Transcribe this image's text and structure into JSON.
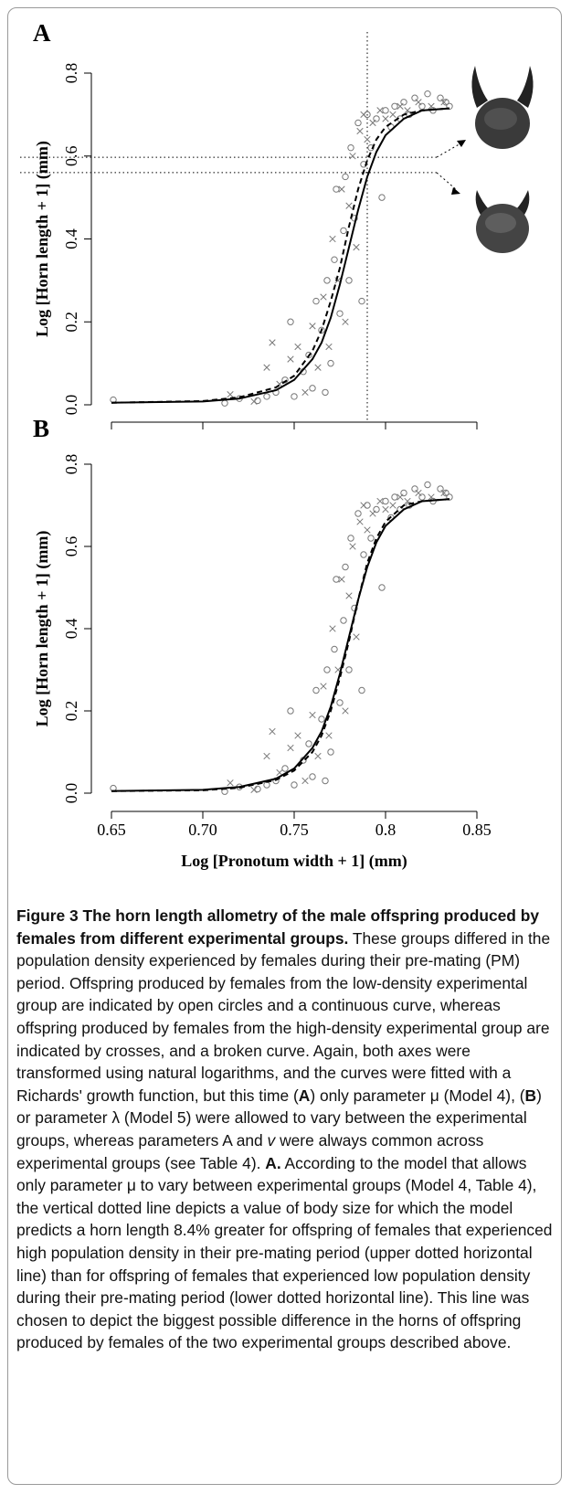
{
  "chart_data": [
    {
      "type": "scatter",
      "panel_label": "A",
      "ylabel": "Log [Horn length + 1] (mm)",
      "xlim": [
        0.65,
        0.85
      ],
      "ylim": [
        0,
        0.8
      ],
      "xticks": [
        0.65,
        0.7,
        0.75,
        0.8,
        0.85
      ],
      "xtick_labels": false,
      "yticks": [
        {
          "value": 0,
          "label": "0.0"
        },
        0.2,
        0.4,
        0.6,
        0.8
      ],
      "vlines": [
        0.79
      ],
      "hlines": [
        0.597,
        0.56
      ],
      "series": [
        {
          "marker": "circle",
          "color": "#777777",
          "x": [
            0.651,
            0.712,
            0.72,
            0.73,
            0.735,
            0.74,
            0.745,
            0.748,
            0.75,
            0.755,
            0.758,
            0.76,
            0.762,
            0.765,
            0.767,
            0.768,
            0.77,
            0.772,
            0.773,
            0.775,
            0.777,
            0.778,
            0.78,
            0.781,
            0.783,
            0.785,
            0.787,
            0.788,
            0.79,
            0.792,
            0.795,
            0.798,
            0.8,
            0.803,
            0.805,
            0.808,
            0.81,
            0.813,
            0.816,
            0.82,
            0.823,
            0.826,
            0.83,
            0.833,
            0.835
          ],
          "values": [
            0.012,
            0.004,
            0.015,
            0.01,
            0.02,
            0.03,
            0.06,
            0.2,
            0.02,
            0.08,
            0.12,
            0.04,
            0.25,
            0.18,
            0.03,
            0.3,
            0.1,
            0.35,
            0.52,
            0.22,
            0.42,
            0.55,
            0.3,
            0.62,
            0.45,
            0.68,
            0.25,
            0.58,
            0.7,
            0.62,
            0.69,
            0.5,
            0.71,
            0.67,
            0.72,
            0.69,
            0.73,
            0.7,
            0.74,
            0.72,
            0.75,
            0.71,
            0.74,
            0.73,
            0.72
          ]
        },
        {
          "marker": "cross",
          "color": "#777777",
          "x": [
            0.715,
            0.728,
            0.735,
            0.738,
            0.742,
            0.748,
            0.752,
            0.756,
            0.76,
            0.763,
            0.766,
            0.769,
            0.771,
            0.774,
            0.776,
            0.778,
            0.78,
            0.782,
            0.784,
            0.786,
            0.788,
            0.79,
            0.793,
            0.797,
            0.8,
            0.804,
            0.808,
            0.812,
            0.818,
            0.825,
            0.832
          ],
          "values": [
            0.025,
            0.008,
            0.09,
            0.15,
            0.05,
            0.11,
            0.14,
            0.03,
            0.19,
            0.09,
            0.26,
            0.14,
            0.4,
            0.3,
            0.52,
            0.2,
            0.48,
            0.6,
            0.38,
            0.66,
            0.7,
            0.64,
            0.68,
            0.71,
            0.69,
            0.7,
            0.72,
            0.71,
            0.73,
            0.72,
            0.73
          ]
        }
      ],
      "curves": [
        {
          "style": "solid",
          "color": "#000000",
          "x": [
            0.65,
            0.7,
            0.72,
            0.74,
            0.75,
            0.76,
            0.765,
            0.77,
            0.775,
            0.78,
            0.785,
            0.79,
            0.795,
            0.8,
            0.81,
            0.82,
            0.835
          ],
          "values": [
            0.005,
            0.008,
            0.015,
            0.035,
            0.06,
            0.11,
            0.15,
            0.21,
            0.29,
            0.38,
            0.47,
            0.55,
            0.61,
            0.65,
            0.69,
            0.71,
            0.715
          ]
        },
        {
          "style": "dashed",
          "color": "#000000",
          "x": [
            0.65,
            0.7,
            0.72,
            0.74,
            0.75,
            0.76,
            0.765,
            0.77,
            0.775,
            0.78,
            0.785,
            0.79,
            0.795,
            0.8,
            0.81,
            0.82,
            0.835
          ],
          "values": [
            0.005,
            0.009,
            0.018,
            0.042,
            0.07,
            0.13,
            0.18,
            0.25,
            0.33,
            0.43,
            0.52,
            0.59,
            0.64,
            0.67,
            0.7,
            0.71,
            0.715
          ]
        }
      ]
    },
    {
      "type": "scatter",
      "panel_label": "B",
      "ylabel": "Log [Horn length + 1] (mm)",
      "xlabel": "Log [Pronotum width + 1] (mm)",
      "xlim": [
        0.65,
        0.85
      ],
      "ylim": [
        0,
        0.8
      ],
      "xticks": [
        0.65,
        {
          "value": 0.7,
          "label": "0.70"
        },
        0.75,
        0.8,
        0.85
      ],
      "yticks": [
        {
          "value": 0,
          "label": "0.0"
        },
        0.2,
        0.4,
        0.6,
        0.8
      ],
      "series": [
        {
          "marker": "circle",
          "color": "#777777",
          "x": [
            0.651,
            0.712,
            0.72,
            0.73,
            0.735,
            0.74,
            0.745,
            0.748,
            0.75,
            0.755,
            0.758,
            0.76,
            0.762,
            0.765,
            0.767,
            0.768,
            0.77,
            0.772,
            0.773,
            0.775,
            0.777,
            0.778,
            0.78,
            0.781,
            0.783,
            0.785,
            0.787,
            0.788,
            0.79,
            0.792,
            0.795,
            0.798,
            0.8,
            0.803,
            0.805,
            0.808,
            0.81,
            0.813,
            0.816,
            0.82,
            0.823,
            0.826,
            0.83,
            0.833,
            0.835
          ],
          "values": [
            0.012,
            0.004,
            0.015,
            0.01,
            0.02,
            0.03,
            0.06,
            0.2,
            0.02,
            0.08,
            0.12,
            0.04,
            0.25,
            0.18,
            0.03,
            0.3,
            0.1,
            0.35,
            0.52,
            0.22,
            0.42,
            0.55,
            0.3,
            0.62,
            0.45,
            0.68,
            0.25,
            0.58,
            0.7,
            0.62,
            0.69,
            0.5,
            0.71,
            0.67,
            0.72,
            0.69,
            0.73,
            0.7,
            0.74,
            0.72,
            0.75,
            0.71,
            0.74,
            0.73,
            0.72
          ]
        },
        {
          "marker": "cross",
          "color": "#777777",
          "x": [
            0.715,
            0.728,
            0.735,
            0.738,
            0.742,
            0.748,
            0.752,
            0.756,
            0.76,
            0.763,
            0.766,
            0.769,
            0.771,
            0.774,
            0.776,
            0.778,
            0.78,
            0.782,
            0.784,
            0.786,
            0.788,
            0.79,
            0.793,
            0.797,
            0.8,
            0.804,
            0.808,
            0.812,
            0.818,
            0.825,
            0.832
          ],
          "values": [
            0.025,
            0.008,
            0.09,
            0.15,
            0.05,
            0.11,
            0.14,
            0.03,
            0.19,
            0.09,
            0.26,
            0.14,
            0.4,
            0.3,
            0.52,
            0.2,
            0.48,
            0.6,
            0.38,
            0.66,
            0.7,
            0.64,
            0.68,
            0.71,
            0.69,
            0.7,
            0.72,
            0.71,
            0.73,
            0.72,
            0.73
          ]
        }
      ],
      "curves": [
        {
          "style": "solid",
          "color": "#000000",
          "x": [
            0.65,
            0.7,
            0.72,
            0.74,
            0.75,
            0.76,
            0.765,
            0.77,
            0.775,
            0.78,
            0.785,
            0.79,
            0.795,
            0.8,
            0.81,
            0.82,
            0.835
          ],
          "values": [
            0.005,
            0.008,
            0.015,
            0.035,
            0.06,
            0.11,
            0.15,
            0.21,
            0.29,
            0.38,
            0.47,
            0.55,
            0.61,
            0.65,
            0.69,
            0.71,
            0.715
          ]
        },
        {
          "style": "dashed",
          "color": "#000000",
          "x": [
            0.65,
            0.7,
            0.72,
            0.74,
            0.75,
            0.76,
            0.765,
            0.77,
            0.775,
            0.78,
            0.785,
            0.79,
            0.795,
            0.8,
            0.81,
            0.82,
            0.835
          ],
          "values": [
            0.005,
            0.007,
            0.013,
            0.032,
            0.055,
            0.1,
            0.14,
            0.2,
            0.28,
            0.37,
            0.47,
            0.56,
            0.62,
            0.66,
            0.7,
            0.71,
            0.715
          ]
        }
      ]
    }
  ],
  "caption": {
    "label": "Figure 3",
    "title": "The horn length allometry of the male offspring produced by females from different experimental groups.",
    "body": [
      " These groups differed in the population density experienced by females during their pre-mating (PM) period. Offspring produced by females from the low-density experimental group are indicated by open circles and a continuous curve, whereas offspring produced by females from the high-density experimental group are indicated by crosses, and a broken curve. Again, both axes were transformed using natural logarithms, and the curves were fitted with a Richards' growth function, but this time (",
      "A",
      ") only parameter μ (Model 4), (",
      "B",
      ") or parameter λ (Model 5) were allowed to vary between the experimental groups, whereas parameters A and ",
      "v",
      " were always common across experimental groups (see Table 4). ",
      "A.",
      " According to the model that allows only parameter μ to vary between experimental groups (Model 4, Table 4), the vertical dotted line depicts a value of body size for which the model predicts a horn length 8.4% greater for offspring of females that experienced high population density in their pre-mating period (upper dotted horizontal line) than for offspring of females that experienced low population density during their pre-mating period (lower dotted horizontal line). This line was chosen to depict the biggest possible difference in the horns of offspring produced by females of the two experimental groups described above."
    ]
  }
}
